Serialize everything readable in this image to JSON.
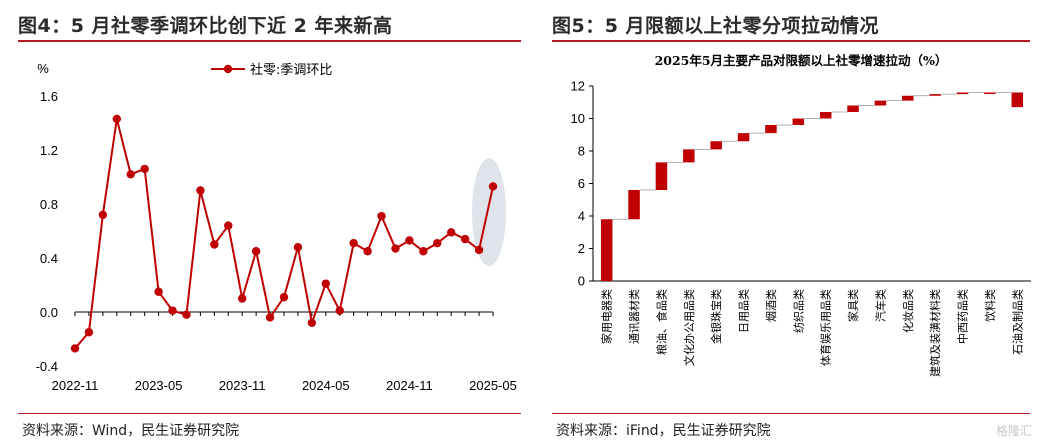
{
  "left": {
    "title": "图4：5 月社零季调环比创下近 2 年来新高",
    "source": "资料来源：Wind，民生证券研究院"
  },
  "right": {
    "title": "图5：5 月限额以上社零分项拉动情况",
    "source": "资料来源：iFind，民生证券研究院"
  },
  "watermark": "格隆汇",
  "colors": {
    "accent": "#c00000",
    "highlight": "#dfe3ea",
    "rule": "#b81c22"
  },
  "chart_data": [
    {
      "type": "line",
      "ylabel": "%",
      "ylim": [
        -0.4,
        1.6
      ],
      "yticks": [
        "1.6",
        "1.2",
        "0.8",
        "0.4",
        "0.0",
        "-0.4"
      ],
      "xticks": [
        "2022-11",
        "2023-05",
        "2023-11",
        "2024-05",
        "2024-11",
        "2025-05"
      ],
      "legend": "top-right",
      "series": [
        {
          "name": "社零:季调环比",
          "x": [
            "2022-11",
            "2022-12",
            "2023-01",
            "2023-02",
            "2023-03",
            "2023-04",
            "2023-05",
            "2023-06",
            "2023-07",
            "2023-08",
            "2023-09",
            "2023-10",
            "2023-11",
            "2023-12",
            "2024-01",
            "2024-02",
            "2024-03",
            "2024-04",
            "2024-05",
            "2024-06",
            "2024-07",
            "2024-08",
            "2024-09",
            "2024-10",
            "2024-11",
            "2024-12",
            "2025-01",
            "2025-02",
            "2025-03",
            "2025-04",
            "2025-05"
          ],
          "values": [
            -0.27,
            -0.15,
            0.72,
            1.43,
            1.02,
            1.06,
            0.15,
            0.01,
            -0.02,
            0.9,
            0.5,
            0.64,
            0.1,
            0.45,
            -0.04,
            0.11,
            0.48,
            -0.08,
            0.21,
            0.01,
            0.51,
            0.45,
            0.71,
            0.47,
            0.53,
            0.45,
            0.51,
            0.59,
            0.54,
            0.46,
            0.93
          ]
        }
      ],
      "highlight": "2025-05"
    },
    {
      "type": "bar",
      "subtype": "waterfall",
      "title": "2025年5月主要产品对限额以上社零增速拉动（%）",
      "ylim": [
        0,
        12
      ],
      "yticks": [
        "12",
        "10",
        "8",
        "6",
        "4",
        "2",
        "0"
      ],
      "categories": [
        "家用电器类",
        "通讯器材类",
        "粮油、食品类",
        "文化办公用品类",
        "金银珠宝类",
        "日用品类",
        "烟酒类",
        "纺织品类",
        "体育娱乐用品类",
        "家具类",
        "汽车类",
        "化妆品类",
        "建筑及装潢材料类",
        "中西药品类",
        "饮料类",
        "石油及制品类"
      ],
      "values": [
        3.8,
        1.8,
        1.7,
        0.8,
        0.5,
        0.5,
        0.5,
        0.4,
        0.4,
        0.4,
        0.3,
        0.3,
        0.1,
        0.1,
        0.0,
        -0.9
      ]
    }
  ]
}
